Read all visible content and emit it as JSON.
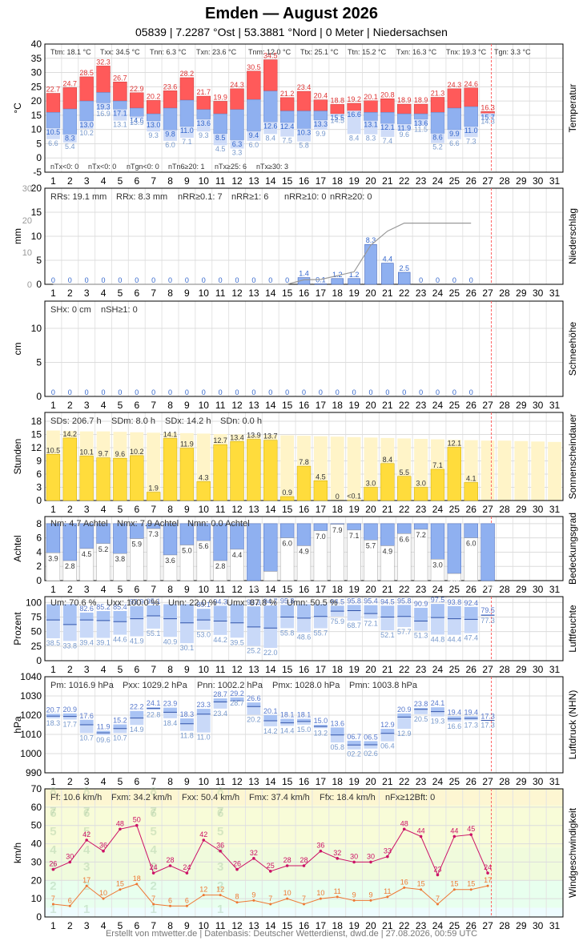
{
  "header": {
    "title": "Emden  —  August 2026",
    "subtitle": "05839  |  7.2287 °Ost  |  53.3881 °Nord  |  0 Meter  |  Niedersachsen"
  },
  "footer": "Erstellt von mtwetter.de | Datenbasis: Deutscher Wetterdienst, dwd.de | 27.08.2026, 00:59 UTC",
  "colors": {
    "tmax": "#ff5a5a",
    "tmin": "#8fb0f0",
    "precip": "#8fb0f0",
    "sun": "#ffdc3c",
    "sunbg": "#fff4c8",
    "cloud": "#8fb0f0",
    "grid": "#dddddd",
    "wind": "#cc1166",
    "gust": "#ee7733",
    "today": "#ff6666"
  },
  "chart_data": [
    {
      "type": "bar",
      "id": "temp",
      "ylabel": "°C",
      "side_label": "Temperatur",
      "ylim": [
        -5,
        40
      ],
      "yticks": [
        -5,
        0,
        5,
        10,
        15,
        20,
        25,
        30,
        35,
        40
      ],
      "days": [
        1,
        2,
        3,
        4,
        5,
        6,
        7,
        8,
        9,
        10,
        11,
        12,
        13,
        14,
        15,
        16,
        17,
        18,
        19,
        20,
        21,
        22,
        23,
        24,
        25,
        26,
        27,
        28,
        29,
        30,
        31
      ],
      "tmax": [
        22.7,
        24.7,
        28.5,
        32.3,
        26.7,
        22.9,
        20.2,
        23.6,
        28.2,
        21.7,
        19.9,
        24.3,
        30.5,
        34.5,
        21.2,
        23.4,
        20.4,
        18.8,
        19.2,
        20.1,
        20.8,
        18.9,
        18.9,
        21.3,
        24.3,
        24.6,
        16.3
      ],
      "tmean": [
        16.0,
        17.2,
        20.0,
        23.0,
        20.0,
        17.5,
        15.5,
        17.5,
        20.3,
        17.0,
        15.5,
        17.0,
        20.5,
        23.5,
        16.5,
        16.5,
        16.5,
        15.5,
        15.5,
        16.0,
        16.0,
        15.5,
        15.5,
        16.0,
        17.5,
        18.0,
        15.5
      ],
      "tmin": [
        10.5,
        8.3,
        13.0,
        19.3,
        17.1,
        14.6,
        13.0,
        9.8,
        11.0,
        13.6,
        8.5,
        6.3,
        9.4,
        12.6,
        12.4,
        10.3,
        13.3,
        15.5,
        16.6,
        13.1,
        12.1,
        11.9,
        13.6,
        8.6,
        9.9,
        11.0,
        15.7
      ],
      "tground": [
        6.6,
        5.4,
        10.2,
        16.9,
        13.1,
        13.9,
        9.3,
        6.0,
        7.1,
        9.3,
        4.5,
        3.3,
        6.0,
        8.4,
        7.5,
        5.8,
        9.9,
        14.5,
        8.4,
        8.3,
        7.4,
        9.6,
        11.5,
        5.2,
        6.6,
        7.3,
        14.3
      ],
      "top_stats": [
        "Ttm: 18.1 °C",
        "Txx: 34.5 °C",
        "Tnn: 6.3 °C",
        "Txn: 23.6 °C",
        "Tnm: 12.0 °C",
        "Ttx: 25.1 °C",
        "Ttn: 15.2 °C",
        "Txn: 16.3 °C",
        "Tnx: 19.3 °C",
        "Tgn: 3.3 °C"
      ],
      "bottom_stats": [
        "nTx<0: 0",
        "nTx<0: 0",
        "nTgn<0: 0",
        "nTn6≥20: 1",
        "nTx≥25: 6",
        "nTx≥30: 3"
      ]
    },
    {
      "type": "bar",
      "id": "precip",
      "ylabel": "mm",
      "side_label": "Niederschlag",
      "ylim": [
        0,
        20
      ],
      "yticks": [
        0,
        5,
        10,
        15,
        20
      ],
      "yticks_right": [
        0,
        10,
        20,
        30
      ],
      "values": [
        0,
        0,
        0,
        0,
        0,
        0,
        0,
        0,
        0,
        0,
        0,
        0,
        0,
        0,
        0,
        1.4,
        0.1,
        1.2,
        1.2,
        8.3,
        4.4,
        2.5,
        0,
        0,
        0,
        0,
        0
      ],
      "labels": [
        "0",
        "0",
        "0",
        "0",
        "0",
        "0",
        "0",
        "0",
        "0",
        "0",
        "0",
        "0",
        "0",
        "0",
        "0",
        "1.4",
        "0.1",
        "1.2",
        "1.2",
        "8.3",
        "4.4",
        "2.5",
        "0",
        "0",
        "0",
        "0",
        ""
      ],
      "cumulative": [
        0,
        0,
        0,
        0,
        0,
        0,
        0,
        0,
        0,
        0,
        0,
        0,
        0,
        0,
        0,
        1.4,
        1.5,
        2.7,
        3.9,
        12.2,
        16.6,
        19.1,
        19.1,
        19.1,
        19.1,
        19.1
      ],
      "stats": [
        "RRs: 19.1 mm",
        "RRx: 8.3 mm",
        "nRR≥0.1: 7",
        "nRR≥1: 6",
        "nRR≥10: 0",
        "nRR≥20: 0"
      ]
    },
    {
      "type": "bar",
      "id": "snow",
      "ylabel": "cm",
      "side_label": "Schneehöhe",
      "ylim": [
        0,
        14
      ],
      "yticks": [
        0,
        5,
        10
      ],
      "values": [
        0,
        0,
        0,
        0,
        0,
        0,
        0,
        0,
        0,
        0,
        0,
        0,
        0,
        0,
        0,
        0,
        0,
        0,
        0,
        0,
        0,
        0,
        0,
        0,
        0,
        0
      ],
      "stats": [
        "SHx: 0 cm",
        "nSH≥1: 0"
      ]
    },
    {
      "type": "bar",
      "id": "sun",
      "ylabel": "Stunden",
      "side_label": "Sonnenscheindauer",
      "ylim": [
        0,
        20
      ],
      "yticks": [
        0,
        3,
        6,
        9,
        12,
        15,
        18
      ],
      "values": [
        10.5,
        14.2,
        10.1,
        9.7,
        9.6,
        10.2,
        1.9,
        14.1,
        11.9,
        4.3,
        12.7,
        13.4,
        13.9,
        13.7,
        0.9,
        7.8,
        4.5,
        0,
        0.05,
        3.0,
        8.4,
        5.5,
        3.0,
        7.1,
        12.1,
        4.1
      ],
      "labels": [
        "10.5",
        "14.2",
        "10.1",
        "9.7",
        "9.6",
        "10.2",
        "1.9",
        "14.1",
        "11.9",
        "4.3",
        "12.7",
        "13.4",
        "13.9",
        "13.7",
        "0.9",
        "7.8",
        "4.5",
        "0",
        "<0.1",
        "3.0",
        "8.4",
        "5.5",
        "3.0",
        "7.1",
        "12.1",
        "4.1"
      ],
      "possible": [
        15.9,
        15.8,
        15.7,
        15.7,
        15.6,
        15.5,
        15.4,
        15.4,
        15.3,
        15.2,
        15.1,
        15.0,
        14.9,
        14.9,
        14.8,
        14.7,
        14.6,
        14.5,
        14.4,
        14.3,
        14.2,
        14.1,
        14.0,
        13.9,
        13.8,
        13.7,
        13.6,
        13.6,
        13.5,
        13.4,
        13.3
      ],
      "stats": [
        "SDs: 206.7 h",
        "SDm: 8.0 h",
        "SDx: 14.2 h",
        "SDn: 0.0 h"
      ]
    },
    {
      "type": "bar",
      "id": "cloud",
      "ylabel": "Achtel",
      "side_label": "Bedeckungsgrad",
      "ylim": [
        0,
        9
      ],
      "yticks": [
        0,
        2,
        4,
        6,
        8
      ],
      "values": [
        3.9,
        2.8,
        4.5,
        5.2,
        3.8,
        5.9,
        7.3,
        3.6,
        5.0,
        5.6,
        2.8,
        4.4,
        0.0,
        1.3,
        6.0,
        4.9,
        7.0,
        7.9,
        7.1,
        5.7,
        4.9,
        6.6,
        7.2,
        3.0,
        1.0,
        6.0,
        0.0
      ],
      "labels": [
        "3.9",
        "2.8",
        "4.5",
        "5.2",
        "3.8",
        "5.9",
        "7.3",
        "3.6",
        "5.0",
        "5.6",
        "2.8",
        "4.4",
        "0.0",
        "1.3",
        "6.0",
        "4.9",
        "7.0",
        "7.9",
        "7.1",
        "5.7",
        "4.9",
        "6.6",
        "7.2",
        "3.0",
        "1.0",
        "6.0",
        "0.0"
      ],
      "stats": [
        "Nm: 4.7 Achtel",
        "Nmx: 7.9 Achtel",
        "Nmn: 0.0 Achtel"
      ]
    },
    {
      "type": "bar",
      "id": "humidity",
      "ylabel": "Prozent",
      "side_label": "Luftfeuchte",
      "ylim": [
        0,
        110
      ],
      "yticks": [
        0,
        25,
        50,
        75,
        100
      ],
      "max": [
        97,
        97,
        82.6,
        85.2,
        85.4,
        93.9,
        95.1,
        97,
        97,
        89.1,
        94.3,
        97,
        93.3,
        94.7,
        95.8,
        97,
        97,
        94.5,
        95.8,
        95.4,
        94.5,
        95.8,
        90.9,
        97.5,
        93.8,
        92.4,
        79.5
      ],
      "max_labels": [
        "",
        "",
        "82.6",
        "85.2",
        "85.4",
        "93.9",
        "95.1",
        "",
        "",
        "89.1",
        "94.3",
        "",
        "93.3",
        "94.7",
        "95.8",
        "",
        "",
        "94.5",
        "95.8",
        "95.4",
        "94.5",
        "95.8",
        "90.9",
        "97.5",
        "93.8",
        "92.4",
        "79.5"
      ],
      "mean": [
        70,
        62,
        70,
        69,
        67,
        72,
        77,
        72,
        65,
        70,
        68,
        65,
        58,
        56,
        75,
        73,
        76,
        85,
        86,
        81,
        75,
        76,
        68,
        74,
        72,
        71,
        78
      ],
      "min": [
        38.5,
        33.8,
        39.4,
        39.1,
        44.6,
        41.9,
        55.1,
        40.9,
        30.1,
        53.0,
        44.2,
        39.5,
        25.2,
        22.0,
        55.8,
        48.6,
        55.7,
        75.9,
        68.7,
        72.1,
        52.1,
        57.7,
        51.3,
        44.8,
        44.4,
        47.4,
        77.3
      ],
      "stats": [
        "Um: 70.6 %",
        "Uxx: 100.0 %",
        "Unn: 22.0 %",
        "Umx: 87.8 %",
        "Umn: 50.5 %"
      ]
    },
    {
      "type": "bar",
      "id": "pressure",
      "ylabel": "hPa",
      "side_label": "Luftdruck (NHN)",
      "ylim": [
        990,
        1040
      ],
      "yticks": [
        990,
        1000,
        1010,
        1020,
        1030,
        1040
      ],
      "max": [
        20.7,
        20.9,
        17.6,
        11.9,
        15.2,
        22.2,
        24.1,
        23.9,
        18.3,
        23.3,
        28.7,
        29.2,
        26.6,
        20.1,
        18.1,
        18.1,
        15.0,
        13.6,
        6.7,
        6.5,
        12.9,
        20.9,
        23.8,
        24.1,
        19.4,
        19.4,
        17.3
      ],
      "mean": [
        19.5,
        19.3,
        15,
        10.8,
        13,
        18.5,
        23.5,
        21.5,
        15.5,
        20.5,
        26.9,
        27.5,
        24.5,
        17.1,
        16,
        16.7,
        14.1,
        9.7,
        4.5,
        4.6,
        10.5,
        19,
        23,
        21.8,
        18,
        18.3,
        17.3
      ],
      "min": [
        18.3,
        17.7,
        10.7,
        9.6,
        10.7,
        14.9,
        22.8,
        18.4,
        11.8,
        11.0,
        23.4,
        28.7,
        20.2,
        14.2,
        14.4,
        15.0,
        13.2,
        5.8,
        2.2,
        2.6,
        6.4,
        12.9,
        20.5,
        19.3,
        16.6,
        17.3,
        17.3
      ],
      "stats": [
        "Pm: 1016.9 hPa",
        "Pxx: 1029.2 hPa",
        "Pnn: 1002.2 hPa",
        "Pmx: 1028.0 hPa",
        "Pmn: 1003.8 hPa"
      ]
    },
    {
      "type": "line",
      "id": "wind",
      "ylabel": "km/h",
      "side_label": "Windgeschwindigkeit",
      "ylim": [
        0,
        70
      ],
      "yticks": [
        0,
        10,
        20,
        30,
        40,
        50,
        60,
        70
      ],
      "gusts": [
        26,
        30,
        42,
        36,
        48,
        50,
        24,
        28,
        24,
        42,
        36,
        26,
        32,
        25,
        28,
        28,
        36,
        32,
        30,
        30,
        33,
        48,
        44,
        23,
        44,
        45,
        24
      ],
      "mean": [
        7,
        6,
        17,
        10,
        15,
        18,
        7,
        6,
        6,
        12,
        12,
        8,
        9,
        7,
        10,
        7,
        10,
        11,
        9,
        9,
        11,
        16,
        15,
        7,
        15,
        15,
        17
      ],
      "mean_labels": [
        "7",
        "6",
        "17",
        "10",
        "15",
        "18",
        "7",
        "6",
        "6",
        "12",
        "12",
        "8",
        "9",
        "7",
        "10",
        "7",
        "10",
        "11",
        "9",
        "9",
        "11",
        "16",
        "15",
        "7",
        "15",
        "15",
        "17"
      ],
      "beaufort": [
        "1",
        "2",
        "3",
        "4",
        "5",
        "6",
        "7",
        "8"
      ],
      "stats": [
        "Ff: 10.6 km/h",
        "Fxm: 34.2 km/h",
        "Fxx: 50.4 km/h",
        "Fmx: 37.4 km/h",
        "Ffx: 18.4 km/h",
        "nFx≥12Bft: 0"
      ]
    }
  ]
}
